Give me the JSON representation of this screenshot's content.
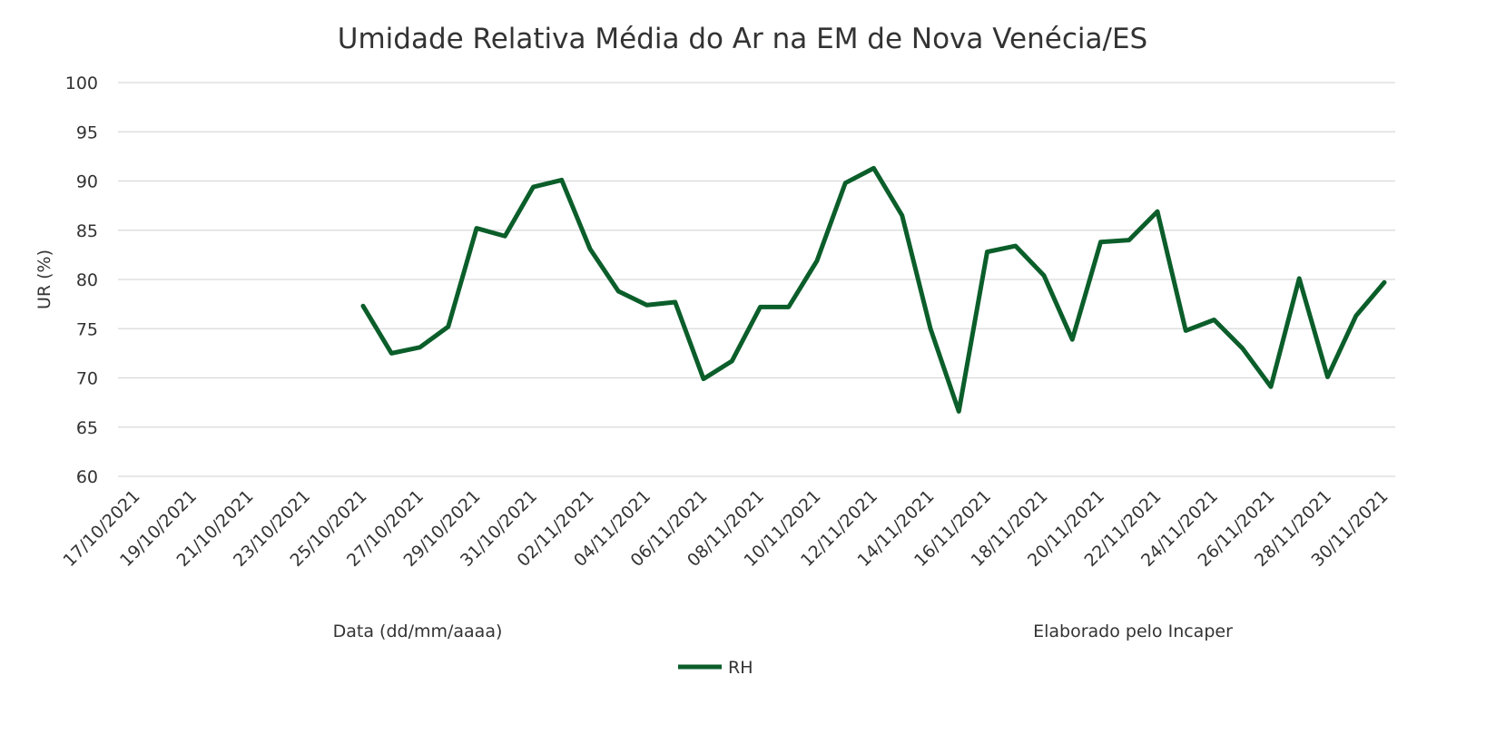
{
  "chart_data": {
    "type": "line",
    "title": "Umidade Relativa Média do Ar na EM de Nova Venécia/ES",
    "y_label": "UR (%)",
    "annotations": [
      "Data (dd/mm/aaaa)",
      "Elaborado pelo Incaper"
    ],
    "categories": [
      "17/10/2021",
      null,
      "19/10/2021",
      null,
      "21/10/2021",
      null,
      "23/10/2021",
      null,
      "25/10/2021",
      null,
      "27/10/2021",
      null,
      "29/10/2021",
      null,
      "31/10/2021",
      null,
      "02/11/2021",
      null,
      "04/11/2021",
      null,
      "06/11/2021",
      null,
      "08/11/2021",
      null,
      "10/11/2021",
      null,
      "12/11/2021",
      null,
      "14/11/2021",
      null,
      "16/11/2021",
      null,
      "18/11/2021",
      null,
      "20/11/2021",
      null,
      "22/11/2021",
      null,
      "24/11/2021",
      null,
      "26/11/2021",
      null,
      "28/11/2021",
      null,
      "30/11/2021"
    ],
    "series": [
      {
        "name": "RH",
        "color": "#0b5e2a",
        "values": [
          null,
          null,
          null,
          null,
          null,
          null,
          null,
          null,
          77.3,
          72.5,
          73.1,
          75.2,
          85.2,
          84.4,
          89.4,
          90.1,
          83.1,
          78.8,
          77.4,
          77.7,
          69.9,
          71.7,
          77.2,
          77.2,
          81.9,
          89.8,
          91.3,
          86.5,
          75.0,
          66.6,
          82.8,
          83.4,
          80.4,
          73.9,
          83.8,
          84.0,
          86.9,
          74.8,
          75.9,
          73.0,
          69.1,
          80.1,
          70.1,
          76.3,
          79.7
        ]
      }
    ],
    "ylim": [
      60,
      100
    ],
    "yticks": [
      60,
      65,
      70,
      75,
      80,
      85,
      90,
      95,
      100
    ],
    "grid": true,
    "legend": "bottom"
  }
}
